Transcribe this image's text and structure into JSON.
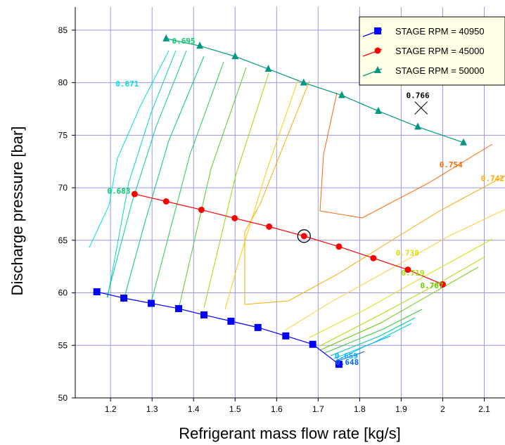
{
  "chart_data": {
    "type": "line",
    "xlabel": "Refrigerant mass flow rate [kg/s]",
    "ylabel": "Discharge pressure [bar]",
    "xlim": [
      1.115,
      2.15
    ],
    "ylim": [
      50,
      87.2
    ],
    "xticks": [
      "1.2",
      "1.3",
      "1.4",
      "1.5",
      "1.6",
      "1.7",
      "1.8",
      "1.9",
      "2",
      "2.1"
    ],
    "yticks": [
      "50",
      "55",
      "60",
      "65",
      "70",
      "75",
      "80",
      "85"
    ],
    "grid": true,
    "legend_position": "top-right",
    "series": [
      {
        "name": "STAGE RPM = 40950",
        "color": "#0000ff",
        "marker": "square",
        "x": [
          1.167,
          1.232,
          1.298,
          1.364,
          1.425,
          1.49,
          1.555,
          1.622,
          1.687,
          1.75
        ],
        "y": [
          60.1,
          59.5,
          59.0,
          58.5,
          57.9,
          57.3,
          56.7,
          55.9,
          55.1,
          53.2
        ]
      },
      {
        "name": "STAGE RPM = 45000",
        "color": "#ff0000",
        "marker": "circle",
        "x": [
          1.258,
          1.334,
          1.419,
          1.499,
          1.582,
          1.666,
          1.75,
          1.833,
          1.916,
          2.0
        ],
        "y": [
          69.4,
          68.7,
          67.9,
          67.1,
          66.3,
          65.4,
          64.4,
          63.3,
          62.2,
          60.8
        ]
      },
      {
        "name": "STAGE RPM = 50000",
        "color": "#009980",
        "marker": "triangle",
        "x": [
          1.334,
          1.415,
          1.5,
          1.58,
          1.665,
          1.757,
          1.845,
          1.94,
          2.05
        ],
        "y": [
          84.2,
          83.5,
          82.5,
          81.3,
          80.0,
          78.8,
          77.3,
          75.8,
          74.3
        ]
      }
    ],
    "contours": [
      {
        "label": "0.671",
        "color": "#00e0e0",
        "label_at": [
          1.24,
          79.9
        ]
      },
      {
        "label": "0.695",
        "color": "#00cc66",
        "label_at": [
          1.376,
          84.0
        ]
      },
      {
        "label": "0.683",
        "color": "#00cc66",
        "label_at": [
          1.22,
          69.7
        ]
      },
      {
        "label": "0.766",
        "color": "#000000",
        "label_at": [
          1.94,
          78.8
        ]
      },
      {
        "label": "0.754",
        "color": "#ff6600",
        "label_at": [
          2.02,
          72.2
        ]
      },
      {
        "label": "0.742",
        "color": "#ffaa00",
        "label_at": [
          2.12,
          70.9
        ]
      },
      {
        "label": "0.730",
        "color": "#dddd00",
        "label_at": [
          1.915,
          63.8
        ]
      },
      {
        "label": "0.719",
        "color": "#aadd00",
        "label_at": [
          1.928,
          61.9
        ]
      },
      {
        "label": "0.707",
        "color": "#66cc00",
        "label_at": [
          1.974,
          60.7
        ]
      },
      {
        "label": "0.659",
        "color": "#00aaff",
        "label_at": [
          1.768,
          54.0
        ]
      },
      {
        "label": "0.648",
        "color": "#0066ff",
        "label_at": [
          1.77,
          53.4
        ]
      }
    ],
    "markers": [
      {
        "name": "design-point",
        "shape": "circled",
        "x": 1.666,
        "y": 65.4
      },
      {
        "name": "max-efficiency",
        "shape": "x",
        "x": 1.948,
        "y": 77.6
      }
    ]
  }
}
